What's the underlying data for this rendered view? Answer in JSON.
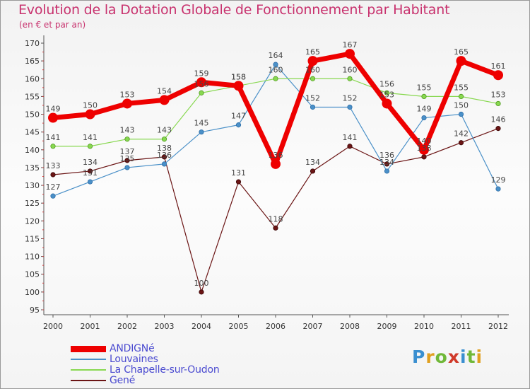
{
  "header": {
    "title": "Evolution de la Dotation Globale de Fonctionnement par Habitant",
    "subtitle": "(en € et par an)"
  },
  "chart_data": {
    "type": "line",
    "title": "Evolution de la Dotation Globale de Fonctionnement par Habitant",
    "subtitle": "(en € et par an)",
    "xlabel": "",
    "ylabel": "",
    "ylim": [
      95,
      170
    ],
    "yticks": [
      95,
      100,
      105,
      110,
      115,
      120,
      125,
      130,
      135,
      140,
      145,
      150,
      155,
      160,
      165,
      170
    ],
    "grid": false,
    "legend_position": "bottom-left",
    "categories": [
      "2000",
      "2001",
      "2002",
      "2003",
      "2004",
      "2005",
      "2006",
      "2007",
      "2008",
      "2009",
      "2010",
      "2011",
      "2012"
    ],
    "series": [
      {
        "name": "ANDIGNé",
        "color": "#ee0000",
        "values": [
          149,
          150,
          153,
          154,
          159,
          158,
          136,
          165,
          167,
          153,
          140,
          165,
          161
        ]
      },
      {
        "name": "Louvaines",
        "color": "#4a90c8",
        "values": [
          127,
          131,
          135,
          136,
          145,
          147,
          164,
          152,
          152,
          134,
          149,
          150,
          129
        ]
      },
      {
        "name": "La Chapelle-sur-Oudon",
        "color": "#88d850",
        "values": [
          141,
          141,
          143,
          143,
          156,
          158,
          160,
          160,
          160,
          156,
          155,
          155,
          153
        ]
      },
      {
        "name": "Gené",
        "color": "#6b1515",
        "values": [
          133,
          134,
          137,
          138,
          100,
          131,
          118,
          134,
          141,
          136,
          138,
          142,
          146
        ]
      }
    ]
  },
  "logo": {
    "letters": [
      {
        "char": "P",
        "color": "#3a8fd0"
      },
      {
        "char": "r",
        "color": "#e0a020"
      },
      {
        "char": "o",
        "color": "#70b838"
      },
      {
        "char": "x",
        "color": "#d03a2a"
      },
      {
        "char": "i",
        "color": "#3a8fd0"
      },
      {
        "char": "t",
        "color": "#70b838"
      },
      {
        "char": "i",
        "color": "#e0a020"
      }
    ]
  }
}
